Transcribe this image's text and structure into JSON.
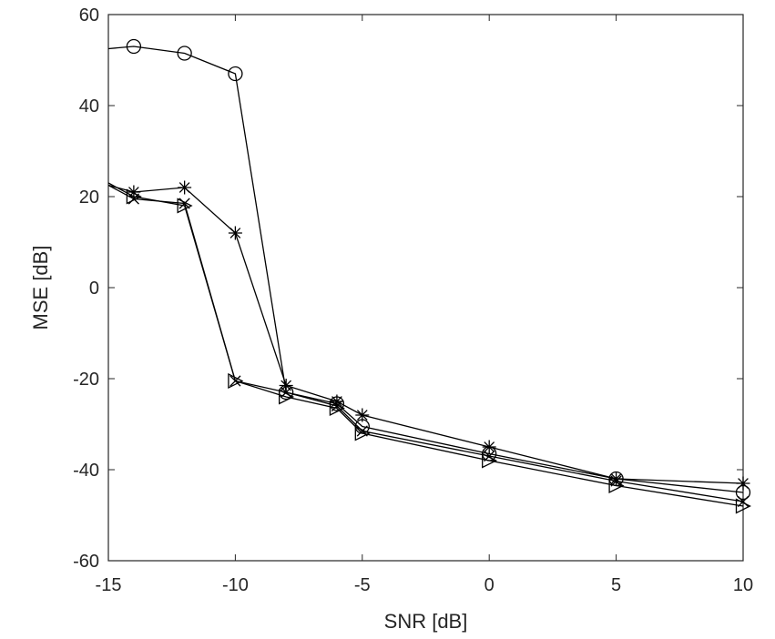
{
  "chart_data": {
    "type": "line",
    "title": "",
    "xlabel": "SNR [dB]",
    "ylabel": "MSE [dB]",
    "xlim": [
      -15,
      10
    ],
    "ylim": [
      -60,
      60
    ],
    "xticks": [
      -15,
      -10,
      -5,
      0,
      5,
      10
    ],
    "yticks": [
      -60,
      -40,
      -20,
      0,
      20,
      40,
      60
    ],
    "grid": false,
    "legend": "none",
    "line_color": "#000000",
    "series": [
      {
        "marker": "circle",
        "x": [
          -15,
          -14,
          -12,
          -10,
          -8,
          -6,
          -5,
          0,
          5,
          10
        ],
        "y": [
          52.5,
          53,
          51.5,
          47,
          -23,
          -25.5,
          -30.5,
          -36.5,
          -42,
          -45
        ]
      },
      {
        "marker": "star",
        "x": [
          -15,
          -14,
          -12,
          -10,
          -8,
          -6,
          -5,
          0,
          5,
          10
        ],
        "y": [
          22.5,
          21,
          22,
          12,
          -21.5,
          -25,
          -28,
          -35,
          -42,
          -43
        ]
      },
      {
        "marker": "triangle-right",
        "x": [
          -15,
          -14,
          -12,
          -10,
          -8,
          -6,
          -5,
          0,
          5,
          10
        ],
        "y": [
          23,
          20,
          18,
          -20.5,
          -24,
          -26.5,
          -32,
          -38,
          -43.5,
          -48
        ]
      },
      {
        "marker": "x",
        "x": [
          -15,
          -14,
          -12,
          -10,
          -8,
          -6,
          -5,
          0,
          5,
          10
        ],
        "y": [
          22.5,
          19.5,
          18.5,
          -20.5,
          -23,
          -26,
          -31.5,
          -37,
          -42.5,
          -47
        ]
      }
    ]
  }
}
